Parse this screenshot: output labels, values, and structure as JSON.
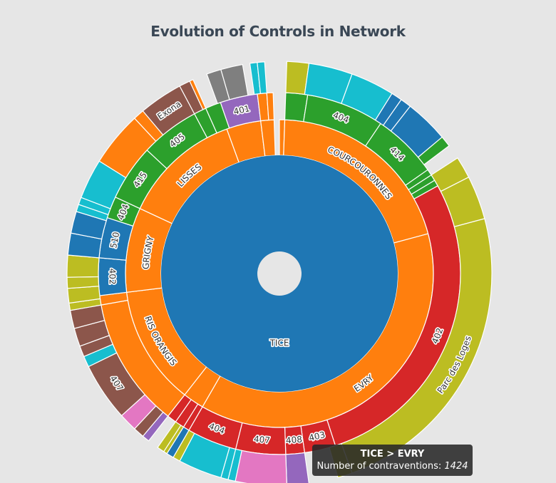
{
  "chart_data": {
    "type": "sunburst",
    "title": "Evolution of Controls in Network",
    "root": "TICE",
    "palette": {
      "blue": "#1f77b4",
      "orange": "#ff7f0e",
      "green": "#2ca02c",
      "red": "#d62728",
      "purple": "#9467bd",
      "brown": "#8c564b",
      "pink": "#e377c2",
      "gray": "#7f7f7f",
      "olive": "#bcbd22",
      "cyan": "#17becf"
    },
    "rings": {
      "ring1": [
        {
          "start": 0,
          "end": 3600,
          "color": "orange"
        }
      ],
      "ring2": [
        {
          "start": 0,
          "end": 2,
          "color": "orange"
        },
        {
          "start": 2,
          "end": 75,
          "color": "orange",
          "label": "COURCOURONNES"
        },
        {
          "start": 75,
          "end": 210,
          "color": "orange",
          "label": "EVRY"
        },
        {
          "start": 210,
          "end": 218,
          "color": "orange"
        },
        {
          "start": 218,
          "end": 263,
          "color": "orange",
          "label": "RIS ORANGIS"
        },
        {
          "start": 263,
          "end": 295,
          "color": "orange",
          "label": "GRIGNY"
        },
        {
          "start": 295,
          "end": 340,
          "color": "orange",
          "label": "LISSES"
        },
        {
          "start": 340,
          "end": 353,
          "color": "orange"
        },
        {
          "start": 353,
          "end": 358,
          "color": "orange"
        }
      ],
      "ring3": [
        {
          "start": 2,
          "end": 9,
          "color": "green"
        },
        {
          "start": 9,
          "end": 34,
          "color": "green",
          "label": "404"
        },
        {
          "start": 34,
          "end": 55,
          "color": "green",
          "label": "414"
        },
        {
          "start": 55,
          "end": 57,
          "color": "green"
        },
        {
          "start": 57,
          "end": 59,
          "color": "green"
        },
        {
          "start": 59,
          "end": 61,
          "color": "green"
        },
        {
          "start": 61,
          "end": 162,
          "color": "red",
          "label": "402"
        },
        {
          "start": 162,
          "end": 172,
          "color": "red",
          "label": "403"
        },
        {
          "start": 172,
          "end": 178,
          "color": "red",
          "label": "408"
        },
        {
          "start": 178,
          "end": 194,
          "color": "red",
          "label": "407"
        },
        {
          "start": 194,
          "end": 210,
          "color": "red",
          "label": "404"
        },
        {
          "start": 210,
          "end": 212,
          "color": "red"
        },
        {
          "start": 212,
          "end": 215,
          "color": "red"
        },
        {
          "start": 215,
          "end": 218,
          "color": "red"
        },
        {
          "start": 218,
          "end": 260,
          "color": "orange"
        },
        {
          "start": 260,
          "end": 263,
          "color": "orange"
        },
        {
          "start": 263,
          "end": 275,
          "color": "blue",
          "label": "402"
        },
        {
          "start": 275,
          "end": 288,
          "color": "blue",
          "label": "510"
        },
        {
          "start": 288,
          "end": 295,
          "color": "green",
          "label": "404"
        },
        {
          "start": 295,
          "end": 313,
          "color": "green",
          "label": "415"
        },
        {
          "start": 313,
          "end": 332,
          "color": "green",
          "label": "405"
        },
        {
          "start": 332,
          "end": 336,
          "color": "green"
        },
        {
          "start": 336,
          "end": 341,
          "color": "green"
        },
        {
          "start": 341,
          "end": 353,
          "color": "purple",
          "label": "401"
        },
        {
          "start": 353,
          "end": 356,
          "color": "orange"
        },
        {
          "start": 356,
          "end": 358,
          "color": "orange"
        }
      ],
      "ring4": [
        {
          "start": 2,
          "end": 8,
          "color": "olive"
        },
        {
          "start": 8,
          "end": 20,
          "color": "cyan"
        },
        {
          "start": 20,
          "end": 32,
          "color": "cyan"
        },
        {
          "start": 32,
          "end": 35,
          "color": "blue"
        },
        {
          "start": 35,
          "end": 38,
          "color": "blue"
        },
        {
          "start": 38,
          "end": 50,
          "color": "blue"
        },
        {
          "start": 50,
          "end": 53,
          "color": "green"
        },
        {
          "start": 57,
          "end": 63,
          "color": "olive"
        },
        {
          "start": 63,
          "end": 75,
          "color": "olive"
        },
        {
          "start": 75,
          "end": 160,
          "color": "olive",
          "label": "Parc des Loges"
        },
        {
          "start": 160,
          "end": 164,
          "color": "olive"
        },
        {
          "start": 172,
          "end": 178,
          "color": "purple"
        },
        {
          "start": 178,
          "end": 192,
          "color": "pink"
        },
        {
          "start": 192,
          "end": 194,
          "color": "cyan"
        },
        {
          "start": 194,
          "end": 196,
          "color": "cyan"
        },
        {
          "start": 196,
          "end": 208,
          "color": "cyan"
        },
        {
          "start": 208,
          "end": 210,
          "color": "olive"
        },
        {
          "start": 210,
          "end": 212,
          "color": "blue"
        },
        {
          "start": 212,
          "end": 213,
          "color": "olive"
        },
        {
          "start": 213,
          "end": 215,
          "color": "olive"
        },
        {
          "start": 218,
          "end": 220,
          "color": "purple"
        },
        {
          "start": 220,
          "end": 223,
          "color": "brown"
        },
        {
          "start": 223,
          "end": 228,
          "color": "pink"
        },
        {
          "start": 228,
          "end": 244,
          "color": "brown",
          "label": "407"
        },
        {
          "start": 244,
          "end": 247,
          "color": "cyan"
        },
        {
          "start": 247,
          "end": 250,
          "color": "brown"
        },
        {
          "start": 250,
          "end": 255,
          "color": "brown"
        },
        {
          "start": 255,
          "end": 260,
          "color": "brown"
        },
        {
          "start": 260,
          "end": 262,
          "color": "olive"
        },
        {
          "start": 262,
          "end": 266,
          "color": "olive"
        },
        {
          "start": 266,
          "end": 269,
          "color": "olive"
        },
        {
          "start": 269,
          "end": 275,
          "color": "olive"
        },
        {
          "start": 275,
          "end": 281,
          "color": "blue"
        },
        {
          "start": 281,
          "end": 287,
          "color": "blue"
        },
        {
          "start": 287,
          "end": 289,
          "color": "cyan"
        },
        {
          "start": 289,
          "end": 291,
          "color": "cyan"
        },
        {
          "start": 291,
          "end": 302,
          "color": "cyan"
        },
        {
          "start": 302,
          "end": 317,
          "color": "orange"
        },
        {
          "start": 317,
          "end": 320,
          "color": "orange"
        },
        {
          "start": 320,
          "end": 332,
          "color": "brown",
          "label": "Exona"
        },
        {
          "start": 332,
          "end": 335,
          "color": "brown"
        },
        {
          "start": 335,
          "end": 336,
          "color": "orange"
        },
        {
          "start": 340,
          "end": 344,
          "color": "gray"
        },
        {
          "start": 344,
          "end": 350,
          "color": "gray"
        },
        {
          "start": 352,
          "end": 354,
          "color": "cyan"
        },
        {
          "start": 354,
          "end": 356,
          "color": "cyan"
        }
      ]
    }
  },
  "tooltip": {
    "path": "TICE > EVRY",
    "label": "Number of contraventions:",
    "value": "1424"
  }
}
